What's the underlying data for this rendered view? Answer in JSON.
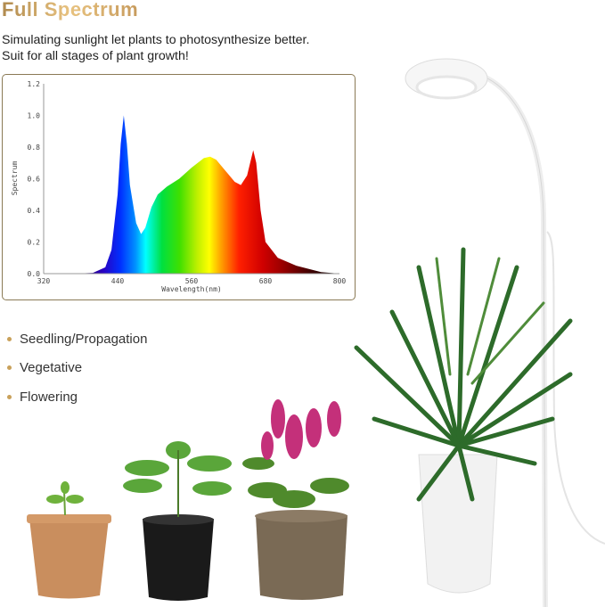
{
  "header": {
    "title": "Full Spectrum",
    "subtitle_lines": [
      "Simulating sunlight let plants to photosynthesize better.",
      "Suit for all stages of plant growth!"
    ]
  },
  "stages": [
    {
      "label": "Seedling/Propagation"
    },
    {
      "label": "Vegetative"
    },
    {
      "label": "Flowering"
    }
  ],
  "colors": {
    "title_gold": "#d6ad6a",
    "bullet_gold": "#c9a15a",
    "chart_border": "#8a7a55"
  },
  "chart_data": {
    "type": "area",
    "title": "",
    "xlabel": "Wavelength(nm)",
    "ylabel": "Spectrum",
    "xlim": [
      320,
      800
    ],
    "ylim": [
      0,
      1.2
    ],
    "xticks": [
      "320",
      "440",
      "560",
      "680",
      "800"
    ],
    "yticks": [
      "0.0",
      "0.2",
      "0.4",
      "0.6",
      "0.8",
      "1.0",
      "1.2"
    ],
    "grid": false,
    "fill": "wavelength-color gradient",
    "x": [
      370,
      400,
      420,
      430,
      440,
      445,
      450,
      455,
      460,
      470,
      478,
      485,
      495,
      505,
      520,
      540,
      560,
      580,
      590,
      600,
      615,
      630,
      640,
      650,
      660,
      665,
      672,
      680,
      700,
      730,
      770,
      800
    ],
    "y": [
      0.0,
      0.005,
      0.04,
      0.15,
      0.5,
      0.82,
      1.0,
      0.82,
      0.56,
      0.32,
      0.25,
      0.29,
      0.42,
      0.5,
      0.55,
      0.6,
      0.67,
      0.73,
      0.74,
      0.72,
      0.65,
      0.58,
      0.56,
      0.62,
      0.78,
      0.7,
      0.4,
      0.2,
      0.1,
      0.05,
      0.01,
      0.0
    ]
  }
}
